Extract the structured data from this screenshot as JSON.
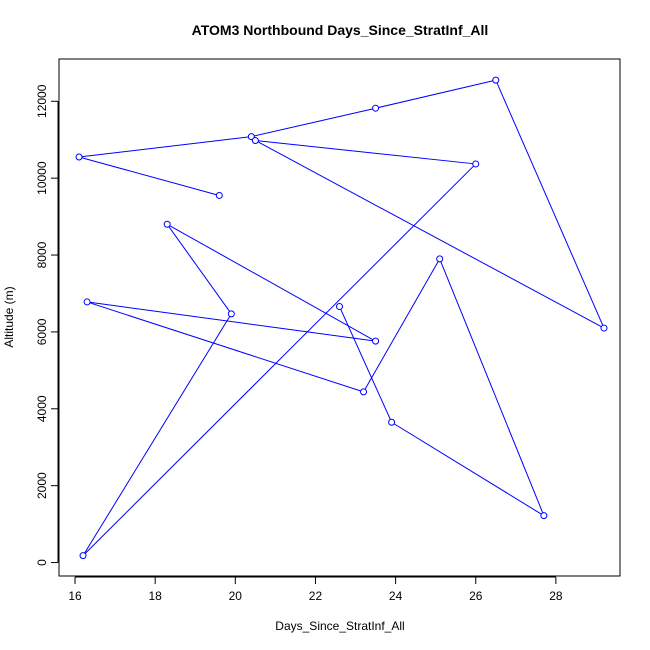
{
  "chart_data": {
    "type": "line",
    "title": "ATOM3 Northbound Days_Since_StratInf_All",
    "xlabel": "Days_Since_StratInf_All",
    "ylabel": "Altitude (m)",
    "xlim": [
      15.6,
      29.6
    ],
    "ylim": [
      -350,
      13100
    ],
    "xticks": [
      16,
      18,
      20,
      22,
      24,
      26,
      28
    ],
    "yticks": [
      0,
      2000,
      4000,
      6000,
      8000,
      10000,
      12000
    ],
    "grid": false,
    "line_color": "#0000ff",
    "series": [
      {
        "points": [
          {
            "x": 19.6,
            "y": 9550
          },
          {
            "x": 16.1,
            "y": 10550
          },
          {
            "x": 20.4,
            "y": 11080
          },
          {
            "x": 23.5,
            "y": 11820
          },
          {
            "x": 26.5,
            "y": 12550
          },
          {
            "x": 29.2,
            "y": 6100
          },
          {
            "x": 20.5,
            "y": 10980
          },
          {
            "x": 26.0,
            "y": 10370
          },
          {
            "x": 16.2,
            "y": 180
          },
          {
            "x": 19.9,
            "y": 6470
          },
          {
            "x": 18.3,
            "y": 8800
          },
          {
            "x": 23.5,
            "y": 5760
          },
          {
            "x": 16.3,
            "y": 6780
          },
          {
            "x": 23.2,
            "y": 4440
          },
          {
            "x": 25.1,
            "y": 7900
          },
          {
            "x": 27.7,
            "y": 1220
          },
          {
            "x": 23.9,
            "y": 3650
          },
          {
            "x": 22.6,
            "y": 6660
          }
        ]
      }
    ]
  }
}
